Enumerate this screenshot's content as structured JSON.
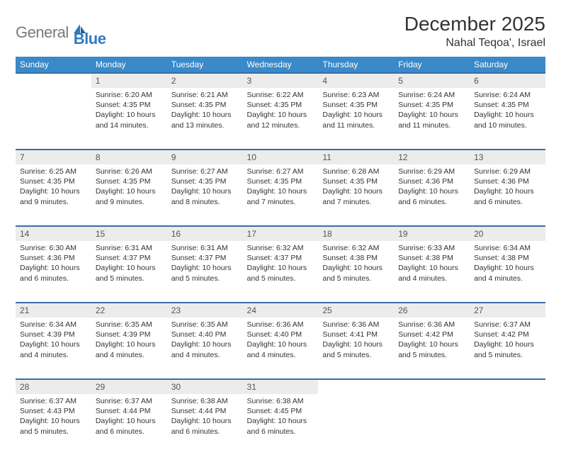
{
  "brand": {
    "part1": "General",
    "part2": "Blue"
  },
  "title": "December 2025",
  "location": "Nahal Teqoa', Israel",
  "colors": {
    "header_bg": "#3a89c9",
    "header_text": "#ffffff",
    "daynum_bg": "#ececec",
    "rule": "#3a6ea5",
    "logo_gray": "#7a7a7a",
    "logo_blue": "#2f7abf"
  },
  "typography": {
    "title_fontsize": 28,
    "location_fontsize": 16,
    "header_fontsize": 12,
    "body_fontsize": 10.5
  },
  "weekdays": [
    "Sunday",
    "Monday",
    "Tuesday",
    "Wednesday",
    "Thursday",
    "Friday",
    "Saturday"
  ],
  "weeks": [
    [
      null,
      {
        "n": "1",
        "sr": "6:20 AM",
        "ss": "4:35 PM",
        "dl": "10 hours and 14 minutes."
      },
      {
        "n": "2",
        "sr": "6:21 AM",
        "ss": "4:35 PM",
        "dl": "10 hours and 13 minutes."
      },
      {
        "n": "3",
        "sr": "6:22 AM",
        "ss": "4:35 PM",
        "dl": "10 hours and 12 minutes."
      },
      {
        "n": "4",
        "sr": "6:23 AM",
        "ss": "4:35 PM",
        "dl": "10 hours and 11 minutes."
      },
      {
        "n": "5",
        "sr": "6:24 AM",
        "ss": "4:35 PM",
        "dl": "10 hours and 11 minutes."
      },
      {
        "n": "6",
        "sr": "6:24 AM",
        "ss": "4:35 PM",
        "dl": "10 hours and 10 minutes."
      }
    ],
    [
      {
        "n": "7",
        "sr": "6:25 AM",
        "ss": "4:35 PM",
        "dl": "10 hours and 9 minutes."
      },
      {
        "n": "8",
        "sr": "6:26 AM",
        "ss": "4:35 PM",
        "dl": "10 hours and 9 minutes."
      },
      {
        "n": "9",
        "sr": "6:27 AM",
        "ss": "4:35 PM",
        "dl": "10 hours and 8 minutes."
      },
      {
        "n": "10",
        "sr": "6:27 AM",
        "ss": "4:35 PM",
        "dl": "10 hours and 7 minutes."
      },
      {
        "n": "11",
        "sr": "6:28 AM",
        "ss": "4:35 PM",
        "dl": "10 hours and 7 minutes."
      },
      {
        "n": "12",
        "sr": "6:29 AM",
        "ss": "4:36 PM",
        "dl": "10 hours and 6 minutes."
      },
      {
        "n": "13",
        "sr": "6:29 AM",
        "ss": "4:36 PM",
        "dl": "10 hours and 6 minutes."
      }
    ],
    [
      {
        "n": "14",
        "sr": "6:30 AM",
        "ss": "4:36 PM",
        "dl": "10 hours and 6 minutes."
      },
      {
        "n": "15",
        "sr": "6:31 AM",
        "ss": "4:37 PM",
        "dl": "10 hours and 5 minutes."
      },
      {
        "n": "16",
        "sr": "6:31 AM",
        "ss": "4:37 PM",
        "dl": "10 hours and 5 minutes."
      },
      {
        "n": "17",
        "sr": "6:32 AM",
        "ss": "4:37 PM",
        "dl": "10 hours and 5 minutes."
      },
      {
        "n": "18",
        "sr": "6:32 AM",
        "ss": "4:38 PM",
        "dl": "10 hours and 5 minutes."
      },
      {
        "n": "19",
        "sr": "6:33 AM",
        "ss": "4:38 PM",
        "dl": "10 hours and 4 minutes."
      },
      {
        "n": "20",
        "sr": "6:34 AM",
        "ss": "4:38 PM",
        "dl": "10 hours and 4 minutes."
      }
    ],
    [
      {
        "n": "21",
        "sr": "6:34 AM",
        "ss": "4:39 PM",
        "dl": "10 hours and 4 minutes."
      },
      {
        "n": "22",
        "sr": "6:35 AM",
        "ss": "4:39 PM",
        "dl": "10 hours and 4 minutes."
      },
      {
        "n": "23",
        "sr": "6:35 AM",
        "ss": "4:40 PM",
        "dl": "10 hours and 4 minutes."
      },
      {
        "n": "24",
        "sr": "6:36 AM",
        "ss": "4:40 PM",
        "dl": "10 hours and 4 minutes."
      },
      {
        "n": "25",
        "sr": "6:36 AM",
        "ss": "4:41 PM",
        "dl": "10 hours and 5 minutes."
      },
      {
        "n": "26",
        "sr": "6:36 AM",
        "ss": "4:42 PM",
        "dl": "10 hours and 5 minutes."
      },
      {
        "n": "27",
        "sr": "6:37 AM",
        "ss": "4:42 PM",
        "dl": "10 hours and 5 minutes."
      }
    ],
    [
      {
        "n": "28",
        "sr": "6:37 AM",
        "ss": "4:43 PM",
        "dl": "10 hours and 5 minutes."
      },
      {
        "n": "29",
        "sr": "6:37 AM",
        "ss": "4:44 PM",
        "dl": "10 hours and 6 minutes."
      },
      {
        "n": "30",
        "sr": "6:38 AM",
        "ss": "4:44 PM",
        "dl": "10 hours and 6 minutes."
      },
      {
        "n": "31",
        "sr": "6:38 AM",
        "ss": "4:45 PM",
        "dl": "10 hours and 6 minutes."
      },
      null,
      null,
      null
    ]
  ],
  "labels": {
    "sunrise": "Sunrise:",
    "sunset": "Sunset:",
    "daylight": "Daylight:"
  }
}
